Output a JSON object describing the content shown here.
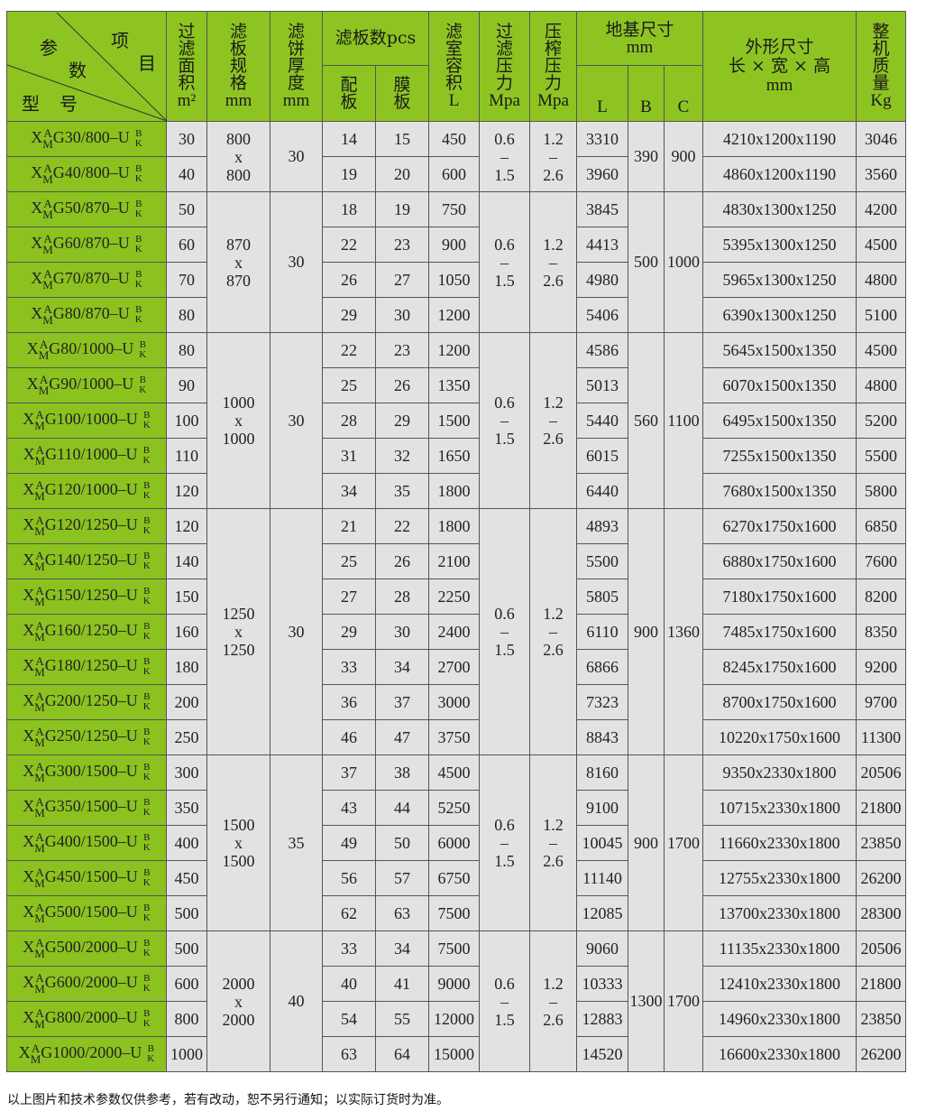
{
  "header": {
    "corner": {
      "top_left": "参",
      "top_right": "项",
      "middle": "数",
      "right": "目",
      "bottom": "型",
      "bottom2": "号"
    },
    "area": {
      "label": "过滤面积",
      "unit": "m²"
    },
    "plate_size": {
      "label": "滤板规格",
      "unit": "mm"
    },
    "cake": {
      "label": "滤饼厚度",
      "unit": "mm"
    },
    "plates": {
      "label": "滤板数pcs",
      "sub1": "配板",
      "sub2": "膜板"
    },
    "volume": {
      "label": "滤室容积",
      "unit": "L"
    },
    "filter_pressure": {
      "label": "过滤压力",
      "unit": "Mpa"
    },
    "squeeze_pressure": {
      "label": "压榨压力",
      "unit": "Mpa"
    },
    "foundation": {
      "label": "地基尺寸",
      "unit": "mm",
      "L": "L",
      "B": "B",
      "C": "C"
    },
    "dims": {
      "label": "外形尺寸",
      "sub": "长 × 宽 × 高",
      "unit": "mm"
    },
    "weight": {
      "label": "整机质量",
      "unit": "Kg"
    }
  },
  "model_affix": {
    "prefix": "X",
    "sup": "A",
    "sub": "M",
    "suffix_top": "B",
    "suffix_bottom": "K"
  },
  "groups": [
    {
      "plate_size": [
        "800",
        "x",
        "800"
      ],
      "cake": "30",
      "filter_pressure": [
        "0.6",
        "–",
        "1.5"
      ],
      "squeeze_pressure": [
        "1.2",
        "–",
        "2.6"
      ],
      "B": "390",
      "C": "900",
      "rows": [
        {
          "model": "G30/800–U",
          "area": "30",
          "plates": "14",
          "membranes": "15",
          "volume": "450",
          "L": "3310",
          "dims": "4210x1200x1190",
          "weight": "3046"
        },
        {
          "model": "G40/800–U",
          "area": "40",
          "plates": "19",
          "membranes": "20",
          "volume": "600",
          "L": "3960",
          "dims": "4860x1200x1190",
          "weight": "3560"
        }
      ]
    },
    {
      "plate_size": [
        "870",
        "x",
        "870"
      ],
      "cake": "30",
      "filter_pressure": [
        "0.6",
        "–",
        "1.5"
      ],
      "squeeze_pressure": [
        "1.2",
        "–",
        "2.6"
      ],
      "B": "500",
      "C": "1000",
      "rows": [
        {
          "model": "G50/870–U",
          "area": "50",
          "plates": "18",
          "membranes": "19",
          "volume": "750",
          "L": "3845",
          "dims": "4830x1300x1250",
          "weight": "4200"
        },
        {
          "model": "G60/870–U",
          "area": "60",
          "plates": "22",
          "membranes": "23",
          "volume": "900",
          "L": "4413",
          "dims": "5395x1300x1250",
          "weight": "4500"
        },
        {
          "model": "G70/870–U",
          "area": "70",
          "plates": "26",
          "membranes": "27",
          "volume": "1050",
          "L": "4980",
          "dims": "5965x1300x1250",
          "weight": "4800"
        },
        {
          "model": "G80/870–U",
          "area": "80",
          "plates": "29",
          "membranes": "30",
          "volume": "1200",
          "L": "5406",
          "dims": "6390x1300x1250",
          "weight": "5100"
        }
      ]
    },
    {
      "plate_size": [
        "1000",
        "x",
        "1000"
      ],
      "cake": "30",
      "filter_pressure": [
        "0.6",
        "–",
        "1.5"
      ],
      "squeeze_pressure": [
        "1.2",
        "–",
        "2.6"
      ],
      "B": "560",
      "C": "1100",
      "rows": [
        {
          "model": "G80/1000–U",
          "area": "80",
          "plates": "22",
          "membranes": "23",
          "volume": "1200",
          "L": "4586",
          "dims": "5645x1500x1350",
          "weight": "4500"
        },
        {
          "model": "G90/1000–U",
          "area": "90",
          "plates": "25",
          "membranes": "26",
          "volume": "1350",
          "L": "5013",
          "dims": "6070x1500x1350",
          "weight": "4800"
        },
        {
          "model": "G100/1000–U",
          "area": "100",
          "plates": "28",
          "membranes": "29",
          "volume": "1500",
          "L": "5440",
          "dims": "6495x1500x1350",
          "weight": "5200"
        },
        {
          "model": "G110/1000–U",
          "area": "110",
          "plates": "31",
          "membranes": "32",
          "volume": "1650",
          "L": "6015",
          "dims": "7255x1500x1350",
          "weight": "5500"
        },
        {
          "model": "G120/1000–U",
          "area": "120",
          "plates": "34",
          "membranes": "35",
          "volume": "1800",
          "L": "6440",
          "dims": "7680x1500x1350",
          "weight": "5800"
        }
      ]
    },
    {
      "plate_size": [
        "1250",
        "x",
        "1250"
      ],
      "cake": "30",
      "filter_pressure": [
        "0.6",
        "–",
        "1.5"
      ],
      "squeeze_pressure": [
        "1.2",
        "–",
        "2.6"
      ],
      "B": "900",
      "C": "1360",
      "rows": [
        {
          "model": "G120/1250–U",
          "area": "120",
          "plates": "21",
          "membranes": "22",
          "volume": "1800",
          "L": "4893",
          "dims": "6270x1750x1600",
          "weight": "6850"
        },
        {
          "model": "G140/1250–U",
          "area": "140",
          "plates": "25",
          "membranes": "26",
          "volume": "2100",
          "L": "5500",
          "dims": "6880x1750x1600",
          "weight": "7600"
        },
        {
          "model": "G150/1250–U",
          "area": "150",
          "plates": "27",
          "membranes": "28",
          "volume": "2250",
          "L": "5805",
          "dims": "7180x1750x1600",
          "weight": "8200"
        },
        {
          "model": "G160/1250–U",
          "area": "160",
          "plates": "29",
          "membranes": "30",
          "volume": "2400",
          "L": "6110",
          "dims": "7485x1750x1600",
          "weight": "8350"
        },
        {
          "model": "G180/1250–U",
          "area": "180",
          "plates": "33",
          "membranes": "34",
          "volume": "2700",
          "L": "6866",
          "dims": "8245x1750x1600",
          "weight": "9200"
        },
        {
          "model": "G200/1250–U",
          "area": "200",
          "plates": "36",
          "membranes": "37",
          "volume": "3000",
          "L": "7323",
          "dims": "8700x1750x1600",
          "weight": "9700"
        },
        {
          "model": "G250/1250–U",
          "area": "250",
          "plates": "46",
          "membranes": "47",
          "volume": "3750",
          "L": "8843",
          "dims": "10220x1750x1600",
          "weight": "11300"
        }
      ]
    },
    {
      "plate_size": [
        "1500",
        "x",
        "1500"
      ],
      "cake": "35",
      "filter_pressure": [
        "0.6",
        "–",
        "1.5"
      ],
      "squeeze_pressure": [
        "1.2",
        "–",
        "2.6"
      ],
      "B": "900",
      "C": "1700",
      "rows": [
        {
          "model": "G300/1500–U",
          "area": "300",
          "plates": "37",
          "membranes": "38",
          "volume": "4500",
          "L": "8160",
          "dims": "9350x2330x1800",
          "weight": "20506"
        },
        {
          "model": "G350/1500–U",
          "area": "350",
          "plates": "43",
          "membranes": "44",
          "volume": "5250",
          "L": "9100",
          "dims": "10715x2330x1800",
          "weight": "21800"
        },
        {
          "model": "G400/1500–U",
          "area": "400",
          "plates": "49",
          "membranes": "50",
          "volume": "6000",
          "L": "10045",
          "dims": "11660x2330x1800",
          "weight": "23850"
        },
        {
          "model": "G450/1500–U",
          "area": "450",
          "plates": "56",
          "membranes": "57",
          "volume": "6750",
          "L": "11140",
          "dims": "12755x2330x1800",
          "weight": "26200"
        },
        {
          "model": "G500/1500–U",
          "area": "500",
          "plates": "62",
          "membranes": "63",
          "volume": "7500",
          "L": "12085",
          "dims": "13700x2330x1800",
          "weight": "28300"
        }
      ]
    },
    {
      "plate_size": [
        "2000",
        "x",
        "2000"
      ],
      "cake": "40",
      "filter_pressure": [
        "0.6",
        "–",
        "1.5"
      ],
      "squeeze_pressure": [
        "1.2",
        "–",
        "2.6"
      ],
      "B": "1300",
      "C": "1700",
      "rows": [
        {
          "model": "G500/2000–U",
          "area": "500",
          "plates": "33",
          "membranes": "34",
          "volume": "7500",
          "L": "9060",
          "dims": "11135x2330x1800",
          "weight": "20506"
        },
        {
          "model": "G600/2000–U",
          "area": "600",
          "plates": "40",
          "membranes": "41",
          "volume": "9000",
          "L": "10333",
          "dims": "12410x2330x1800",
          "weight": "21800"
        },
        {
          "model": "G800/2000–U",
          "area": "800",
          "plates": "54",
          "membranes": "55",
          "volume": "12000",
          "L": "12883",
          "dims": "14960x2330x1800",
          "weight": "23850"
        },
        {
          "model": "G1000/2000–U",
          "area": "1000",
          "plates": "63",
          "membranes": "64",
          "volume": "15000",
          "L": "14520",
          "dims": "16600x2330x1800",
          "weight": "26200"
        }
      ]
    }
  ],
  "colors": {
    "header_green": "#8dc422",
    "cell_gray": "#e2e2e2",
    "border": "#555555"
  },
  "footer_note": "以上图片和技术参数仅供参考，若有改动，恕不另行通知；以实际订货时为准。"
}
